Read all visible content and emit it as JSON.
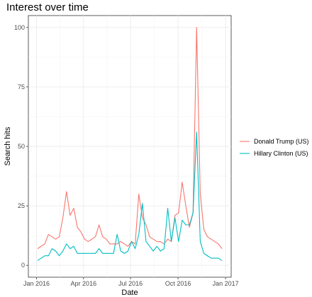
{
  "chart_data": {
    "type": "line",
    "title": "Interest over time",
    "xlabel": "Date",
    "ylabel": "Search hits",
    "ylim": [
      0,
      100
    ],
    "y_ticks": [
      0,
      25,
      50,
      75,
      100
    ],
    "x_ticks": [
      {
        "label": "Jan 2016",
        "date": "2016-01-01"
      },
      {
        "label": "Apr 2016",
        "date": "2016-04-01"
      },
      {
        "label": "Jul 2016",
        "date": "2016-07-01"
      },
      {
        "label": "Oct 2016",
        "date": "2016-10-01"
      },
      {
        "label": "Jan 2017",
        "date": "2017-01-01"
      }
    ],
    "grid": true,
    "legend_position": "right",
    "x": [
      "2016-01-03",
      "2016-01-10",
      "2016-01-17",
      "2016-01-24",
      "2016-01-31",
      "2016-02-07",
      "2016-02-14",
      "2016-02-21",
      "2016-02-28",
      "2016-03-06",
      "2016-03-13",
      "2016-03-20",
      "2016-03-27",
      "2016-04-03",
      "2016-04-10",
      "2016-04-17",
      "2016-04-24",
      "2016-05-01",
      "2016-05-08",
      "2016-05-15",
      "2016-05-22",
      "2016-05-29",
      "2016-06-05",
      "2016-06-12",
      "2016-06-19",
      "2016-06-26",
      "2016-07-03",
      "2016-07-10",
      "2016-07-17",
      "2016-07-24",
      "2016-07-31",
      "2016-08-07",
      "2016-08-14",
      "2016-08-21",
      "2016-08-28",
      "2016-09-04",
      "2016-09-11",
      "2016-09-18",
      "2016-09-25",
      "2016-10-02",
      "2016-10-09",
      "2016-10-16",
      "2016-10-23",
      "2016-10-30",
      "2016-11-06",
      "2016-11-13",
      "2016-11-20",
      "2016-11-27",
      "2016-12-04",
      "2016-12-11",
      "2016-12-18",
      "2016-12-25"
    ],
    "series": [
      {
        "name": "Donald Trump (US)",
        "color": "#f8766d",
        "values": [
          7,
          8,
          9,
          13,
          12,
          11,
          12,
          20,
          31,
          21,
          24,
          16,
          14,
          11,
          10,
          11,
          12,
          17,
          12,
          11,
          9,
          9,
          9,
          10,
          9,
          8,
          10,
          9,
          30,
          20,
          17,
          12,
          11,
          10,
          10,
          9,
          11,
          10,
          21,
          22,
          35,
          25,
          16,
          22,
          100,
          30,
          15,
          12,
          11,
          10,
          9,
          7
        ]
      },
      {
        "name": "Hillary Clinton (US)",
        "color": "#00bfc4",
        "values": [
          2,
          3,
          4,
          4,
          7,
          6,
          4,
          6,
          9,
          7,
          8,
          5,
          5,
          5,
          5,
          5,
          5,
          7,
          5,
          5,
          5,
          5,
          13,
          6,
          5,
          6,
          10,
          7,
          13,
          26,
          10,
          8,
          6,
          8,
          6,
          7,
          24,
          10,
          20,
          10,
          19,
          17,
          17,
          22,
          56,
          10,
          5,
          4,
          3,
          3,
          3,
          2
        ]
      }
    ]
  }
}
